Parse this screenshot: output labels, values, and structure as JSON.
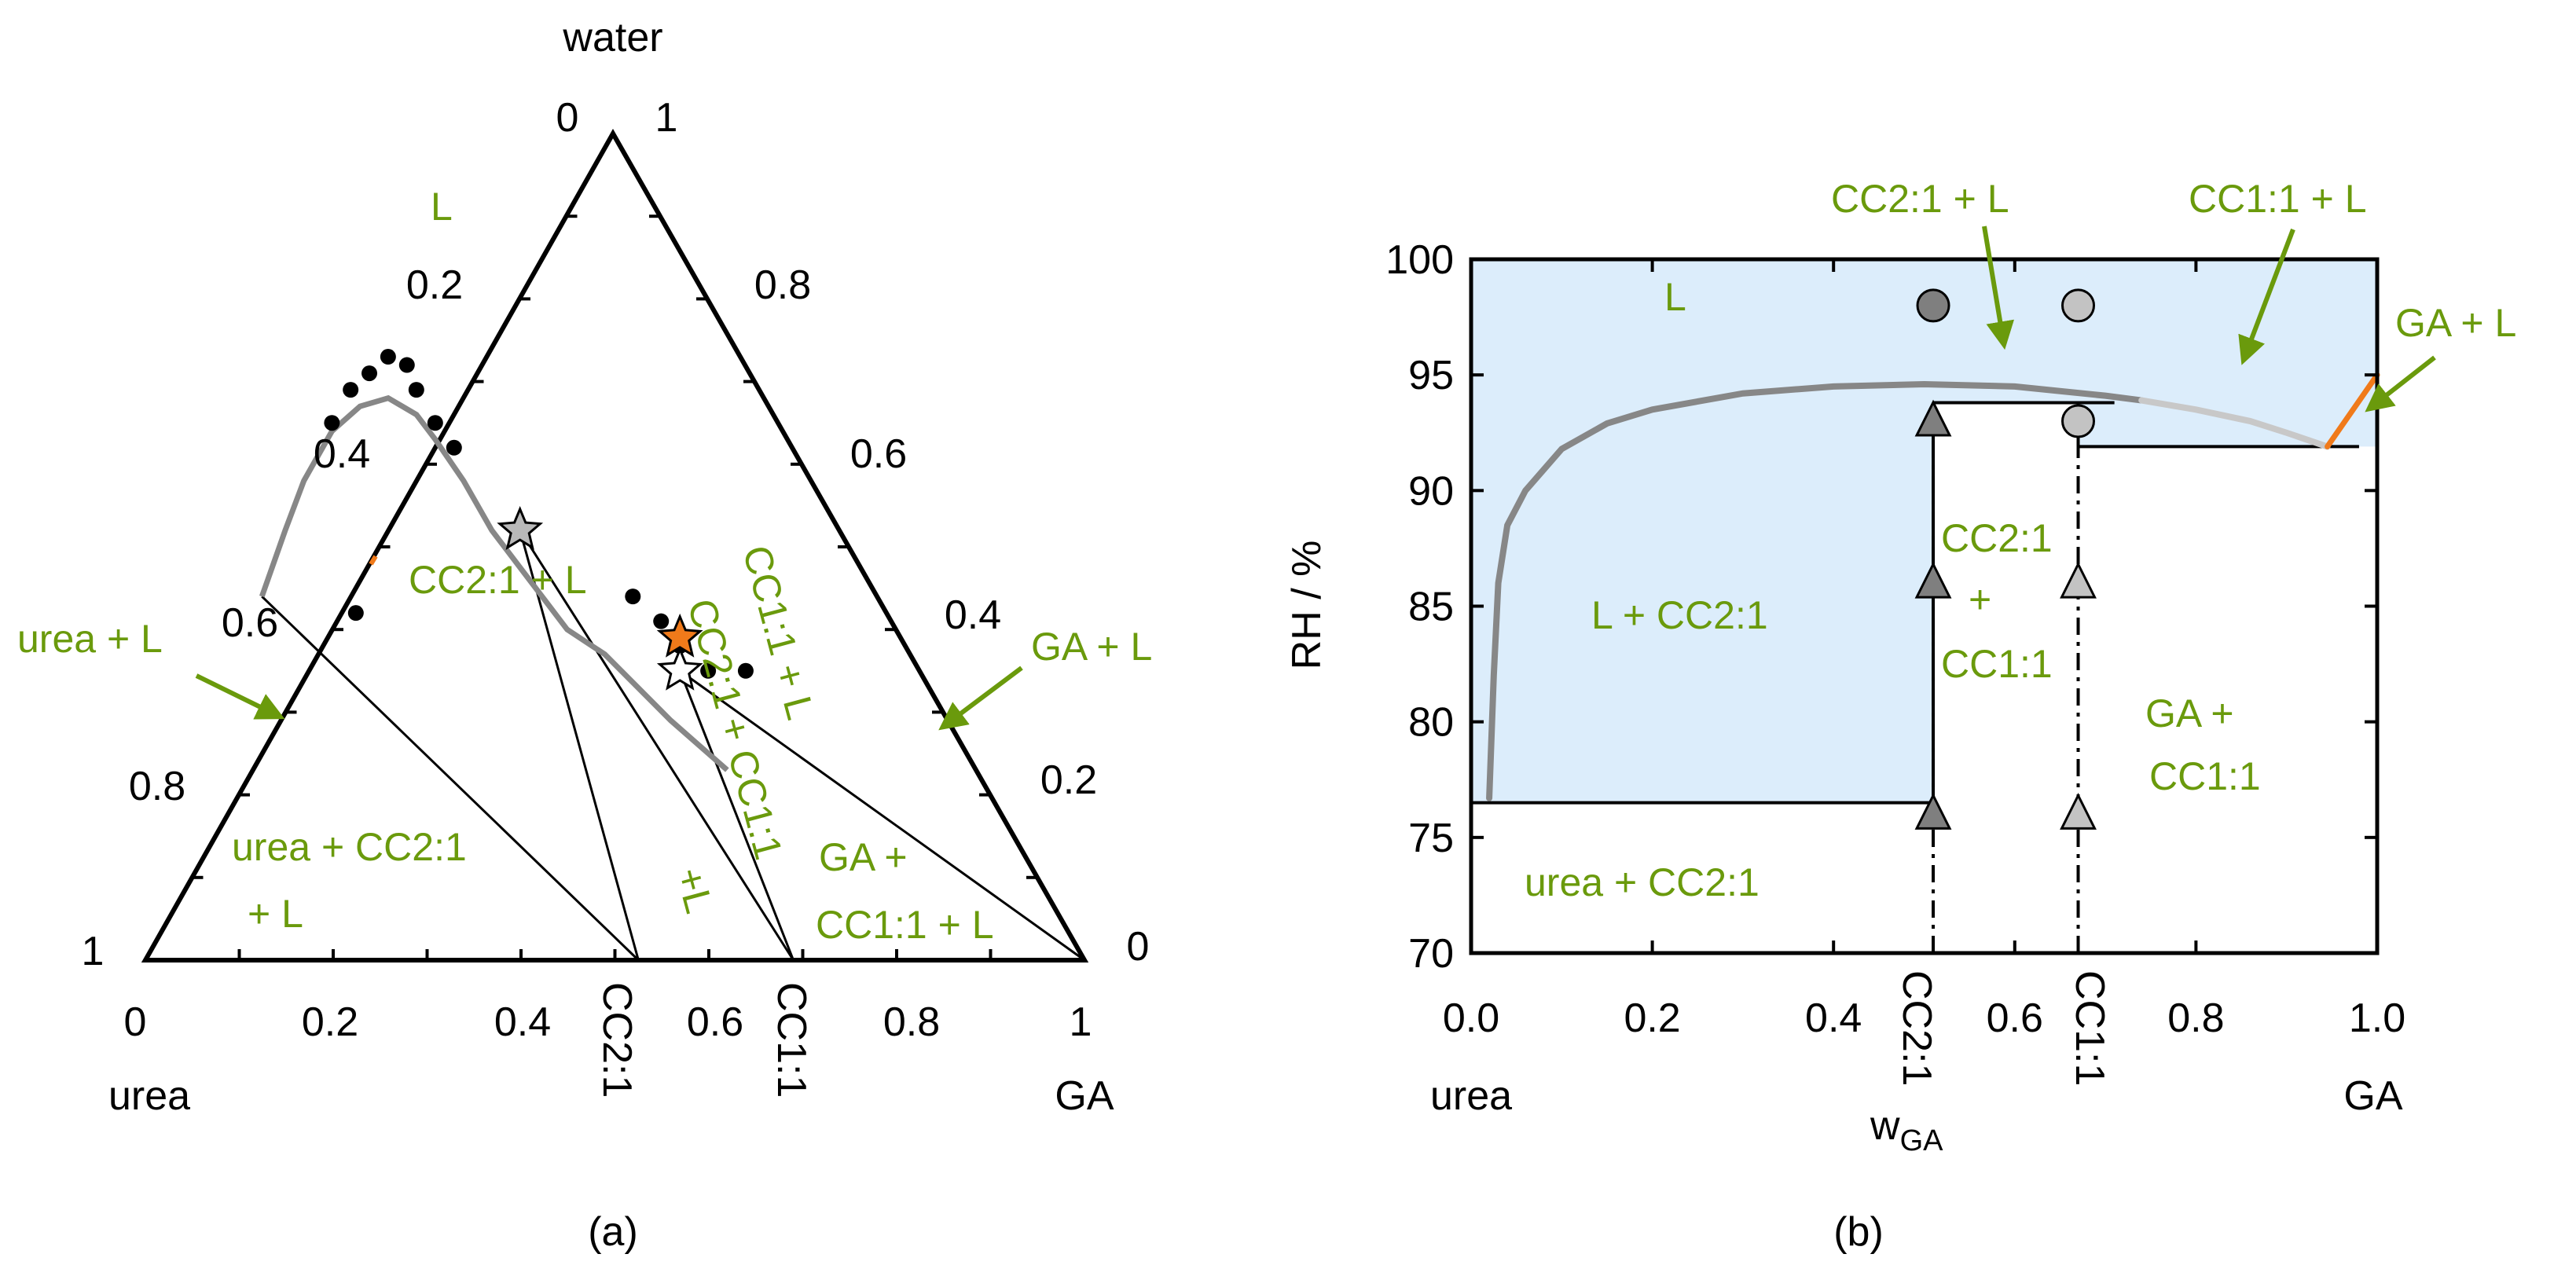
{
  "colors": {
    "green": "#6a9a0c",
    "orange": "#f07a1a",
    "liquid_region": "#dcedfb",
    "curve": "#878787",
    "curve_light": "#c8c8c8",
    "marker_dark": "#7f7f7f",
    "marker_light": "#c3c3c3"
  },
  "chart_data": [
    {
      "type": "ternary",
      "panel_label": "(a)",
      "vertices": {
        "top": "water",
        "left": "urea",
        "right": "GA"
      },
      "top_axis_left": {
        "top_value": "0",
        "ticks": [
          "0.2",
          "0.4",
          "0.6",
          "0.8"
        ],
        "bottom_value": "1"
      },
      "top_axis_right": {
        "top_value": "1",
        "ticks": [
          "0.8",
          "0.6",
          "0.4",
          "0.2"
        ],
        "bottom_value": "0"
      },
      "bottom_axis": {
        "left_value": "0",
        "ticks": [
          "0.2",
          "0.4",
          "0.6",
          "0.8"
        ],
        "right_value": "1"
      },
      "cocrystal_markers": [
        {
          "label": "CC2:1",
          "w_ga": 0.525
        },
        {
          "label": "CC1:1",
          "w_ga": 0.69
        }
      ],
      "series": [
        {
          "name": "measured solubility points",
          "kind": "scatter",
          "points_w_ga_w_water": [
            [
              0.225,
              0.42
            ],
            [
              0.2,
              0.65
            ],
            [
              0.22,
              0.69
            ],
            [
              0.24,
              0.71
            ],
            [
              0.26,
              0.73
            ],
            [
              0.28,
              0.72
            ],
            [
              0.29,
              0.69
            ],
            [
              0.31,
              0.65
            ],
            [
              0.33,
              0.62
            ],
            [
              0.52,
              0.44
            ],
            [
              0.55,
              0.41
            ],
            [
              0.57,
              0.38
            ],
            [
              0.6,
              0.35
            ],
            [
              0.64,
              0.35
            ]
          ]
        },
        {
          "name": "calculated liquidus",
          "kind": "line",
          "points_w_ga_w_water": [
            [
              0.125,
              0.44
            ],
            [
              0.15,
              0.52
            ],
            [
              0.17,
              0.58
            ],
            [
              0.2,
              0.64
            ],
            [
              0.23,
              0.67
            ],
            [
              0.26,
              0.68
            ],
            [
              0.29,
              0.66
            ],
            [
              0.31,
              0.63
            ],
            [
              0.34,
              0.58
            ],
            [
              0.37,
              0.52
            ],
            [
              0.41,
              0.46
            ],
            [
              0.45,
              0.4
            ],
            [
              0.49,
              0.37
            ],
            [
              0.56,
              0.29
            ],
            [
              0.62,
              0.23
            ]
          ]
        },
        {
          "name": "eutonic points",
          "kind": "stars",
          "points": [
            {
              "w_ga": 0.4,
              "w_water": 0.52,
              "color": "gray"
            },
            {
              "w_ga": 0.57,
              "w_water": 0.39,
              "color": "orange"
            },
            {
              "w_ga": 0.57,
              "w_water": 0.35,
              "color": "white"
            }
          ]
        }
      ],
      "region_labels": {
        "liquid": "L",
        "cc21_l": "CC2:1 + L",
        "urea_l": "urea + L",
        "ga_l": "GA + L",
        "urea_cc21_l_1": "urea + CC2:1",
        "urea_cc21_l_2": "+ L",
        "cc21_cc11_l_1": "CC2:1 + CC1:1",
        "cc21_cc11_l_2": "+L",
        "cc11_l": "CC1:1 + L",
        "ga_cc11_l_1": "GA +",
        "ga_cc11_l_2": "CC1:1 + L"
      }
    },
    {
      "type": "phase-diagram",
      "panel_label": "(b)",
      "xlabel": "w",
      "xlabel_sub": "GA",
      "ylabel": "RH / %",
      "xlim": [
        0.0,
        1.0
      ],
      "ylim": [
        70,
        100
      ],
      "x_ticks": [
        "0.0",
        "0.2",
        "0.4",
        "0.6",
        "0.8",
        "1.0"
      ],
      "y_ticks": [
        "70",
        "75",
        "80",
        "85",
        "90",
        "95",
        "100"
      ],
      "x_left_component": "urea",
      "x_right_component": "GA",
      "cocrystal_lines": [
        {
          "label": "CC2:1",
          "x": 0.51
        },
        {
          "label": "CC1:1",
          "x": 0.67
        }
      ],
      "three_phase_lines": [
        {
          "x_from": 0.0,
          "x_to": 0.51,
          "rh": 76.5
        },
        {
          "x_from": 0.51,
          "x_to": 0.71,
          "rh": 93.8
        },
        {
          "x_from": 0.67,
          "x_to": 0.98,
          "rh": 91.9
        }
      ],
      "series": [
        {
          "name": "deliquescence curve (dark)",
          "x": [
            0.02,
            0.025,
            0.03,
            0.04,
            0.06,
            0.1,
            0.15,
            0.2,
            0.3,
            0.4,
            0.5,
            0.6,
            0.7,
            0.74
          ],
          "y": [
            76.7,
            82.0,
            86.0,
            88.5,
            90.0,
            91.8,
            92.9,
            93.5,
            94.2,
            94.5,
            94.6,
            94.5,
            94.1,
            93.9
          ]
        },
        {
          "name": "deliquescence curve (light)",
          "x": [
            0.74,
            0.8,
            0.86,
            0.9,
            0.945
          ],
          "y": [
            93.9,
            93.5,
            93.0,
            92.5,
            91.9
          ]
        },
        {
          "name": "GA + L boundary",
          "x": [
            0.945,
            1.0
          ],
          "y": [
            91.9,
            95.0
          ]
        }
      ],
      "markers": [
        {
          "shape": "circle",
          "x": 0.51,
          "y": 98.0,
          "tone": "dark"
        },
        {
          "shape": "circle",
          "x": 0.67,
          "y": 98.0,
          "tone": "light"
        },
        {
          "shape": "circle",
          "x": 0.67,
          "y": 93.0,
          "tone": "light"
        },
        {
          "shape": "triangle",
          "x": 0.51,
          "y": 93.0,
          "tone": "dark"
        },
        {
          "shape": "triangle",
          "x": 0.51,
          "y": 86.0,
          "tone": "dark"
        },
        {
          "shape": "triangle",
          "x": 0.51,
          "y": 76.0,
          "tone": "dark"
        },
        {
          "shape": "triangle",
          "x": 0.67,
          "y": 86.0,
          "tone": "light"
        },
        {
          "shape": "triangle",
          "x": 0.67,
          "y": 76.0,
          "tone": "light"
        }
      ],
      "region_labels": {
        "liquid": "L",
        "l_cc21": "L + CC2:1",
        "urea_cc21": "urea + CC2:1",
        "cc21_cc11_1": "CC2:1",
        "cc21_cc11_2": "+",
        "cc21_cc11_3": "CC1:1",
        "ga_cc11_1": "GA +",
        "ga_cc11_2": "CC1:1"
      },
      "callouts": {
        "cc21_l": "CC2:1 + L",
        "cc11_l": "CC1:1 + L",
        "ga_l": "GA + L"
      }
    }
  ]
}
